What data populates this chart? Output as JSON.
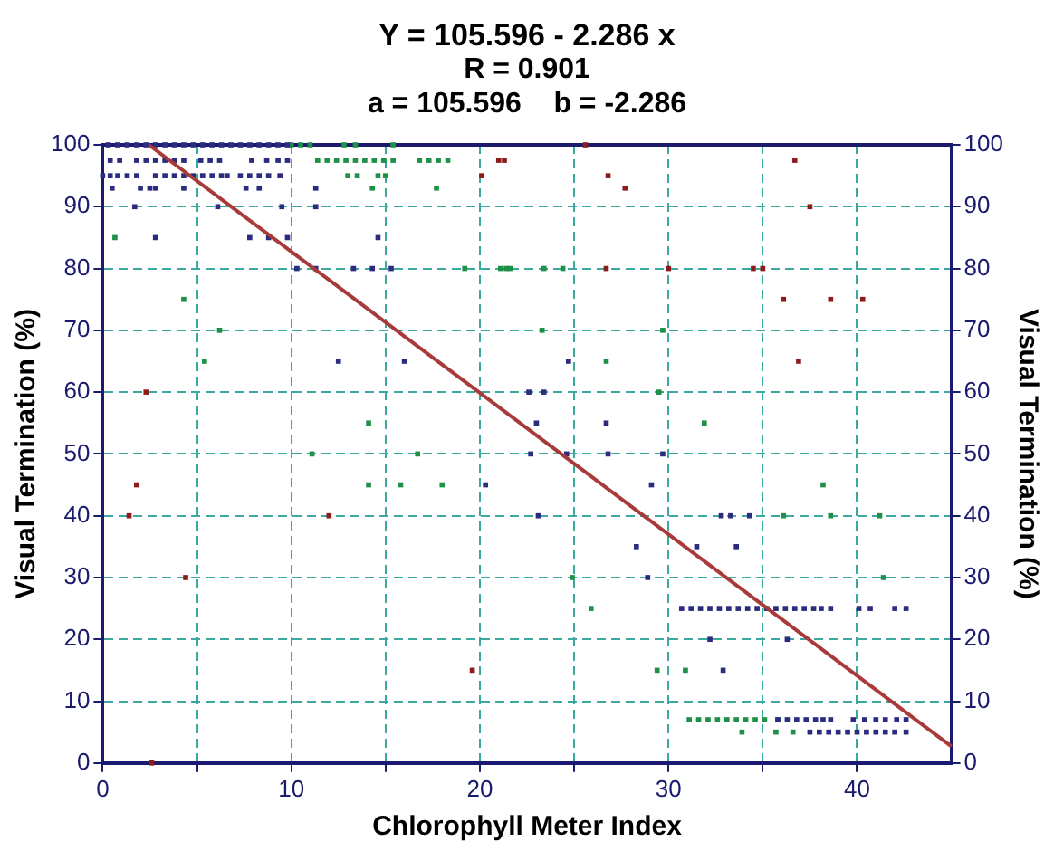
{
  "chart_data": {
    "type": "scatter",
    "title": "Y = 105.596 - 2.286 x",
    "subtitle": "R = 0.901",
    "annotations": [
      "a = 105.596    b = -2.286"
    ],
    "xlabel": "Chlorophyll Meter Index",
    "ylabel": "Visual Termination (%)",
    "y2label": "Visual Termination (%)",
    "xlim": [
      0,
      45
    ],
    "xticks": [
      0,
      {
        "value": 5,
        "label": null
      },
      10,
      {
        "value": 15,
        "label": null
      },
      20,
      {
        "value": 25,
        "label": null
      },
      30,
      {
        "value": 35,
        "label": null
      },
      40
    ],
    "ylim": [
      0,
      100
    ],
    "yticks": [
      0,
      10,
      20,
      30,
      40,
      50,
      60,
      70,
      80,
      90,
      100
    ],
    "y2lim": [
      0,
      100
    ],
    "y2ticks": [
      0,
      10,
      20,
      30,
      40,
      50,
      60,
      70,
      80,
      90,
      100
    ],
    "grid": true,
    "legend": false,
    "marker": "square",
    "series": [
      {
        "color": "#2b2b80",
        "x": [
          0.3,
          0.8,
          1.3,
          1.8,
          2.3,
          2.8,
          3.3,
          3.8,
          4.3,
          4.8,
          5.3,
          5.8,
          6.3,
          6.8,
          7.3,
          7.8,
          8.3,
          8.8,
          9.3,
          9.8,
          0.4,
          0.9,
          1.8,
          2.3,
          2.8,
          3.3,
          3.8,
          4.3,
          5.2,
          5.7,
          6.2,
          7.9,
          8.7,
          9.3,
          9.8,
          0,
          0.4,
          0.8,
          1.3,
          1.8,
          2.8,
          3.3,
          3.8,
          4.3,
          4.8,
          5.3,
          5.8,
          6.3,
          6.6,
          7.3,
          7.8,
          8.3,
          8.8,
          9.4,
          0.5,
          2,
          2.5,
          2.8,
          4.3,
          7.6,
          8.3,
          11.3,
          1.7,
          6.1,
          9.5,
          11.3,
          2.8,
          7.8,
          8.8,
          9.8,
          14.6,
          10.3,
          11.3,
          13.3,
          14.3,
          15.3,
          12.5,
          16,
          24.7,
          22.6,
          23.4,
          23,
          26.7,
          22.7,
          24.6,
          26.8,
          29.7,
          20.3,
          29.1,
          23.1,
          32.8,
          33.3,
          34.3,
          28.3,
          31.5,
          33.6,
          28.9,
          30.7,
          31.2,
          31.7,
          32.2,
          32.7,
          33.2,
          33.7,
          34.2,
          34.7,
          35.2,
          35.7,
          36.2,
          36.7,
          37.2,
          37.7,
          38.1,
          38.6,
          40.1,
          40.7,
          42,
          42.6,
          32.2,
          36.3,
          32.9,
          35.8,
          36.3,
          36.8,
          37.3,
          37.8,
          38.2,
          38.6,
          39.8,
          40.4,
          41,
          41.5,
          42.1,
          42.6,
          37.5,
          38,
          38.5,
          39,
          39.5,
          40,
          40.5,
          41,
          41.5,
          42,
          42.6
        ],
        "values": [
          100,
          100,
          100,
          100,
          100,
          100,
          100,
          100,
          100,
          100,
          100,
          100,
          100,
          100,
          100,
          100,
          100,
          100,
          100,
          100,
          97.5,
          97.5,
          97.5,
          97.5,
          97.5,
          97.5,
          97.5,
          97.5,
          97.5,
          97.5,
          97.5,
          97.5,
          97.5,
          97.5,
          97.5,
          95,
          95,
          95,
          95,
          95,
          95,
          95,
          95,
          95,
          95,
          95,
          95,
          95,
          95,
          95,
          95,
          95,
          95,
          95,
          93,
          93,
          93,
          93,
          93,
          93,
          93,
          93,
          90,
          90,
          90,
          90,
          85,
          85,
          85,
          85,
          85,
          80,
          80,
          80,
          80,
          80,
          65,
          65,
          65,
          60,
          60,
          55,
          55,
          50,
          50,
          50,
          50,
          45,
          45,
          40,
          40,
          40,
          40,
          35,
          35,
          35,
          30,
          25,
          25,
          25,
          25,
          25,
          25,
          25,
          25,
          25,
          25,
          25,
          25,
          25,
          25,
          25,
          25,
          25,
          25,
          25,
          25,
          25,
          20,
          20,
          15,
          7,
          7,
          7,
          7,
          7,
          7,
          7,
          7,
          7,
          7,
          7,
          7,
          7,
          5,
          5,
          5,
          5,
          5,
          5,
          5,
          5,
          5,
          5,
          5
        ]
      },
      {
        "color": "#1e9048",
        "x": [
          10,
          10.5,
          11,
          12.8,
          13.4,
          15.4,
          11.4,
          11.9,
          12.4,
          12.9,
          13.4,
          13.9,
          14.4,
          14.9,
          15.4,
          16.8,
          17.3,
          17.8,
          18.3,
          13,
          13.5,
          14.6,
          15,
          14.3,
          17.7,
          0.65,
          19.2,
          21.1,
          21.4,
          21.6,
          23.4,
          24.4,
          4.3,
          6.2,
          23.3,
          29.7,
          5.4,
          26.7,
          29.5,
          14.1,
          31.9,
          11.1,
          16.7,
          14.1,
          15.8,
          18,
          38.2,
          36.1,
          38.6,
          41.2,
          24.9,
          41.4,
          25.9,
          29.4,
          30.9,
          31.1,
          31.6,
          32.1,
          32.6,
          33.1,
          33.6,
          34.1,
          34.6,
          35.1,
          35.8,
          33.9,
          35.7,
          36.6
        ],
        "values": [
          100,
          100,
          100,
          100,
          100,
          100,
          97.5,
          97.5,
          97.5,
          97.5,
          97.5,
          97.5,
          97.5,
          97.5,
          97.5,
          97.5,
          97.5,
          97.5,
          97.5,
          95,
          95,
          95,
          95,
          93,
          93,
          85,
          80,
          80,
          80,
          80,
          80,
          80,
          75,
          70,
          70,
          70,
          65,
          65,
          60,
          55,
          55,
          50,
          50,
          45,
          45,
          45,
          45,
          40,
          40,
          40,
          30,
          30,
          25,
          15,
          15,
          7,
          7,
          7,
          7,
          7,
          7,
          7,
          7,
          7,
          7,
          5,
          5,
          5
        ]
      },
      {
        "color": "#8c1c1c",
        "x": [
          25.6,
          21,
          21.3,
          36.7,
          20.1,
          26.8,
          27.7,
          37.5,
          26.7,
          30,
          34.5,
          35,
          36.1,
          38.6,
          40.3,
          36.9,
          2.3,
          1.8,
          1.4,
          12,
          4.4,
          19.6,
          2.6
        ],
        "values": [
          100,
          97.5,
          97.5,
          97.5,
          95,
          95,
          93,
          90,
          80,
          80,
          80,
          80,
          75,
          75,
          75,
          65,
          60,
          45,
          40,
          40,
          30,
          15,
          0
        ]
      },
      {
        "type": "line",
        "marker": "none",
        "color": "#a83a3a",
        "x": [
          2.448,
          45
        ],
        "values": [
          100,
          2.7
        ]
      }
    ]
  }
}
